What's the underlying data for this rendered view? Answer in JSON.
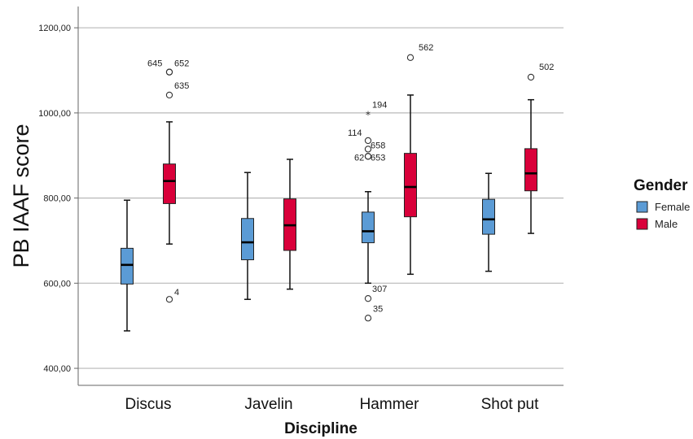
{
  "chart_data": {
    "type": "boxplot",
    "xlabel": "Discipline",
    "ylabel": "PB IAAF score",
    "ylim": [
      360,
      1250
    ],
    "yticks": [
      400,
      600,
      800,
      1000,
      1200
    ],
    "ytick_labels": [
      "400,00",
      "600,00",
      "800,00",
      "1000,00",
      "1200,00"
    ],
    "grid": true,
    "categories": [
      "Discus",
      "Javelin",
      "Hammer",
      "Shot put"
    ],
    "legend": {
      "title": "Gender",
      "placement": "right",
      "entries": [
        {
          "name": "Female",
          "color": "#5b9bd5"
        },
        {
          "name": "Male",
          "color": "#d9003a"
        }
      ]
    },
    "series": [
      {
        "name": "Female",
        "color": "#5b9bd5",
        "boxes": [
          {
            "category": "Discus",
            "min": 488,
            "q1": 598,
            "median": 643,
            "q3": 682,
            "max": 795,
            "outliers": []
          },
          {
            "category": "Javelin",
            "min": 562,
            "q1": 655,
            "median": 696,
            "q3": 752,
            "max": 860,
            "outliers": []
          },
          {
            "category": "Hammer",
            "min": 600,
            "q1": 695,
            "median": 722,
            "q3": 767,
            "max": 815,
            "outliers": [
              {
                "value": 997,
                "label": "194",
                "marker": "star"
              },
              {
                "value": 935,
                "label": "114",
                "marker": "circle"
              },
              {
                "value": 915,
                "label": "658",
                "marker": "circle"
              },
              {
                "value": 898,
                "label": "62",
                "marker": "circle"
              },
              {
                "value": 898,
                "label": "653",
                "marker": "circle"
              },
              {
                "value": 564,
                "label": "307",
                "marker": "circle"
              },
              {
                "value": 518,
                "label": "35",
                "marker": "circle"
              }
            ]
          },
          {
            "category": "Shot put",
            "min": 628,
            "q1": 715,
            "median": 750,
            "q3": 797,
            "max": 858,
            "outliers": []
          }
        ]
      },
      {
        "name": "Male",
        "color": "#d9003a",
        "boxes": [
          {
            "category": "Discus",
            "min": 692,
            "q1": 787,
            "median": 840,
            "q3": 880,
            "max": 979,
            "outliers": [
              {
                "value": 1096,
                "label": "645",
                "marker": "circle"
              },
              {
                "value": 1096,
                "label": "652",
                "marker": "circle"
              },
              {
                "value": 1042,
                "label": "635",
                "marker": "circle"
              },
              {
                "value": 562,
                "label": "4",
                "marker": "circle"
              }
            ]
          },
          {
            "category": "Javelin",
            "min": 586,
            "q1": 677,
            "median": 736,
            "q3": 798,
            "max": 891,
            "outliers": []
          },
          {
            "category": "Hammer",
            "min": 621,
            "q1": 756,
            "median": 826,
            "q3": 905,
            "max": 1042,
            "outliers": [
              {
                "value": 1130,
                "label": "562",
                "marker": "circle"
              }
            ]
          },
          {
            "category": "Shot put",
            "min": 717,
            "q1": 817,
            "median": 858,
            "q3": 916,
            "max": 1031,
            "outliers": [
              {
                "value": 1084,
                "label": "502",
                "marker": "circle"
              }
            ]
          }
        ]
      }
    ]
  }
}
